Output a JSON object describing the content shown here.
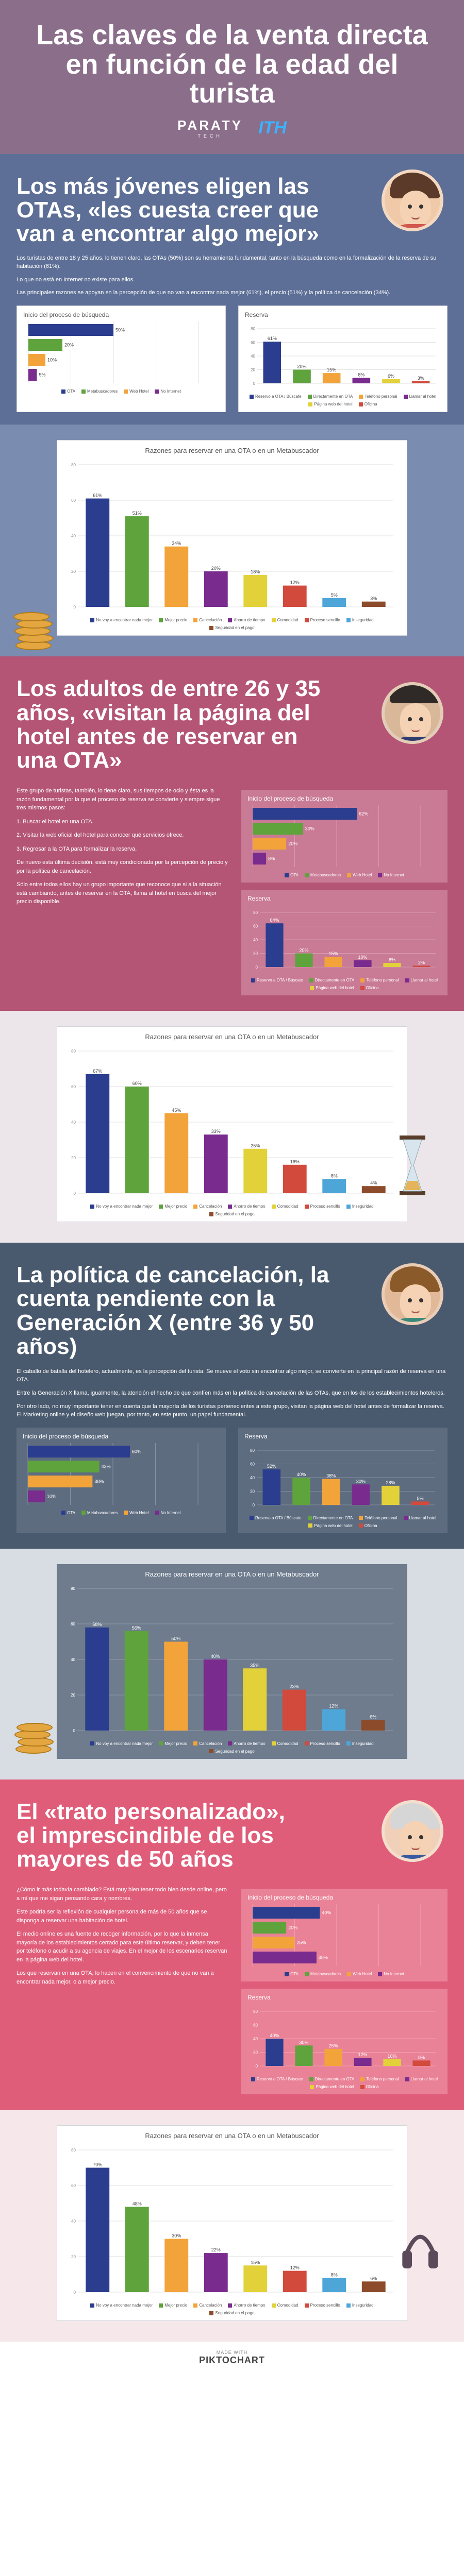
{
  "header": {
    "title": "Las claves de la venta directa en función de la edad del turista",
    "logo_paraty": "PARATY",
    "logo_paraty_sub": "TECH",
    "logo_ith": "ITH"
  },
  "sec1": {
    "title": "Los más jóvenes eligen las OTAs, «les cuesta creer que van a encontrar algo mejor»",
    "p1": "Los turistas de entre 18 y 25 años, lo tienen claro, las OTAs (50%) son su herramienta fundamental, tanto en la búsqueda como en la formalización de la reserva de su habitación (61%).",
    "p2": "Lo que no está en Internet no existe para ellos.",
    "p3": "Las principales razones se apoyan en la percepción de que no van a encontrar nada mejor (61%), el precio (51%) y la política de cancelación (34%)."
  },
  "sec2": {
    "title": "Los adultos de entre 26 y 35 años, «visitan la página del hotel antes de reservar en una OTA»",
    "p1": "Este grupo de turistas, también, lo tiene claro, sus tiempos de ocio y ésta es la razón fundamental por la que el proceso de reserva se convierte y siempre sigue tres mismos pasos:",
    "p2": "1. Buscar el hotel en una OTA.",
    "p3": "2. Visitar la web oficial del hotel para conocer qué servicios ofrece.",
    "p4": "3. Regresar a la OTA para formalizar la reserva.",
    "p5": "De nuevo esta última decisión, está muy condicionada por la percepción de precio y por la política de cancelación.",
    "p6": "Sólo entre todos ellos hay un grupo importante que reconoce que si a la situación está cambiando, antes de reservar en la OTA, llama al hotel en busca del mejor precio disponible."
  },
  "sec3": {
    "title": "La política de cancelación, la cuenta pendiente con la Generación X (entre 36 y 50 años)",
    "p1": "El caballo de batalla del hotelero, actualmente, es la percepción del turista. Se mueve el voto sin encontrar algo mejor, se convierte en la principal razón de reserva en una OTA.",
    "p2": "Entre la Generación X llama, igualmente, la atención el hecho de que confíen más en la política de cancelación de las OTAs, que en los de los establecimientos hoteleros.",
    "p3": "Por otro lado, no muy importante tener en cuenta que la mayoría de los turistas pertenecientes a este grupo, visitan la página web del hotel antes de formalizar la reserva. El Marketing online y el diseño web juegan, por tanto, en este punto, un papel fundamental."
  },
  "sec4": {
    "title": "El «trato personalizado», el imprescindible de los mayores de 50 años",
    "p1": "¿Cómo ir más todavía cambiado? Está muy bien tener todo bien desde online, pero a mí que me sigan pensando cara y nombres.",
    "p2": "Este podría ser la reflexión de cualquier persona de más de 50 años que se disponga a reservar una habitación de hotel.",
    "p3": "El medio online es una fuente de recoger información, por lo que la inmensa mayoría de los establecimientos cerrado para este último reservar, y deben tener por teléfono o acudir a su agencia de viajes. En el mejor de los escenarios reservan en la página web del hotel.",
    "p4": "Los que reservan en una OTA, lo hacen en el convencimiento de que no van a encontrar nada mejor, o a mejor precio."
  },
  "chart_titles": {
    "search": "Inicio del proceso de búsqueda",
    "reserva": "Reserva",
    "reasons": "Razones para reservar en una OTA o en un Metabuscador"
  },
  "legends": {
    "search": [
      "OTA",
      "Metabuscadores",
      "Web Hotel",
      "No Internet"
    ],
    "reserva": [
      "Reservo a OTA / Búscate",
      "Directamente en OTA",
      "Teléfono personal",
      "Llamar al hotel",
      "Página web del hotel",
      "Oficina"
    ],
    "reasons": [
      "No voy a encontrar nada mejor",
      "Mejor precio",
      "Cancelación",
      "Ahorro de tiempo",
      "Comodidad",
      "Proceso sencillo",
      "Inseguridad",
      "Seguridad en el pago"
    ]
  },
  "colors": {
    "c1": "#2b3d8e",
    "c2": "#5fa33d",
    "c3": "#f2a43a",
    "c4": "#7a2b8e",
    "c5": "#e3d13a",
    "c6": "#d24a3c",
    "c7": "#4ea6d8",
    "c8": "#8c4b2a"
  },
  "chart_data": [
    {
      "type": "bar",
      "group": "18-25",
      "title": "Inicio del proceso de búsqueda",
      "categories": [
        "OTA",
        "Metabuscadores",
        "Web Hotel",
        "No Internet"
      ],
      "values": [
        50,
        20,
        10,
        5
      ]
    },
    {
      "type": "bar",
      "group": "18-25",
      "title": "Reserva",
      "categories": [
        "Reservo a OTA / Búscate",
        "Directamente en OTA",
        "Teléfono personal",
        "Llamar al hotel",
        "Página web del hotel",
        "Oficina"
      ],
      "values": [
        61,
        20,
        15,
        8,
        6,
        3
      ]
    },
    {
      "type": "bar",
      "group": "18-25",
      "title": "Razones para reservar en una OTA o en un Metabuscador",
      "categories": [
        "No voy a encontrar nada mejor",
        "Mejor precio",
        "Cancelación",
        "Ahorro de tiempo",
        "Comodidad",
        "Proceso sencillo",
        "Inseguridad",
        "Seguridad en el pago"
      ],
      "values": [
        61,
        51,
        34,
        20,
        18,
        12,
        5,
        3
      ]
    },
    {
      "type": "bar",
      "group": "26-35",
      "title": "Inicio del proceso de búsqueda",
      "categories": [
        "OTA",
        "Metabuscadores",
        "Web Hotel",
        "No Internet"
      ],
      "values": [
        62,
        30,
        20,
        8
      ]
    },
    {
      "type": "bar",
      "group": "26-35",
      "title": "Reserva",
      "categories": [
        "Reservo a OTA / Búscate",
        "Directamente en OTA",
        "Teléfono personal",
        "Llamar al hotel",
        "Página web del hotel",
        "Oficina"
      ],
      "values": [
        64,
        20,
        15,
        10,
        6,
        2
      ]
    },
    {
      "type": "bar",
      "group": "26-35",
      "title": "Razones para reservar en una OTA o en un Metabuscador",
      "categories": [
        "No voy a encontrar nada mejor",
        "Mejor precio",
        "Cancelación",
        "Ahorro de tiempo",
        "Comodidad",
        "Proceso sencillo",
        "Inseguridad",
        "Seguridad en el pago"
      ],
      "values": [
        67,
        60,
        45,
        33,
        25,
        16,
        8,
        4
      ]
    },
    {
      "type": "bar",
      "group": "36-50",
      "title": "Inicio del proceso de búsqueda",
      "categories": [
        "OTA",
        "Metabuscadores",
        "Web Hotel",
        "No Internet"
      ],
      "values": [
        60,
        42,
        38,
        10
      ]
    },
    {
      "type": "bar",
      "group": "36-50",
      "title": "Reserva",
      "categories": [
        "Reservo a OTA / Búscate",
        "Directamente en OTA",
        "Teléfono personal",
        "Llamar al hotel",
        "Página web del hotel",
        "Oficina"
      ],
      "values": [
        52,
        40,
        38,
        30,
        28,
        5
      ]
    },
    {
      "type": "bar",
      "group": "36-50",
      "title": "Razones para reservar en una OTA o en un Metabuscador",
      "categories": [
        "No voy a encontrar nada mejor",
        "Mejor precio",
        "Cancelación",
        "Ahorro de tiempo",
        "Comodidad",
        "Proceso sencillo",
        "Inseguridad",
        "Seguridad en el pago"
      ],
      "values": [
        58,
        56,
        50,
        40,
        35,
        23,
        12,
        6
      ]
    },
    {
      "type": "bar",
      "group": "50+",
      "title": "Inicio del proceso de búsqueda",
      "categories": [
        "OTA",
        "Metabuscadores",
        "Web Hotel",
        "No Internet"
      ],
      "values": [
        40,
        20,
        25,
        38
      ]
    },
    {
      "type": "bar",
      "group": "50+",
      "title": "Reserva",
      "categories": [
        "Reservo a OTA / Búscate",
        "Directamente en OTA",
        "Teléfono personal",
        "Llamar al hotel",
        "Página web del hotel",
        "Oficina"
      ],
      "values": [
        40,
        30,
        25,
        12,
        10,
        8
      ]
    },
    {
      "type": "bar",
      "group": "50+",
      "title": "Razones para reservar en una OTA o en un Metabuscador",
      "categories": [
        "No voy a encontrar nada mejor",
        "Mejor precio",
        "Cancelación",
        "Ahorro de tiempo",
        "Comodidad",
        "Proceso sencillo",
        "Inseguridad",
        "Seguridad en el pago"
      ],
      "values": [
        70,
        48,
        30,
        22,
        15,
        12,
        8,
        6
      ]
    }
  ],
  "footer": {
    "made_with": "MADE WITH",
    "brand": "PIKTOCHART"
  }
}
